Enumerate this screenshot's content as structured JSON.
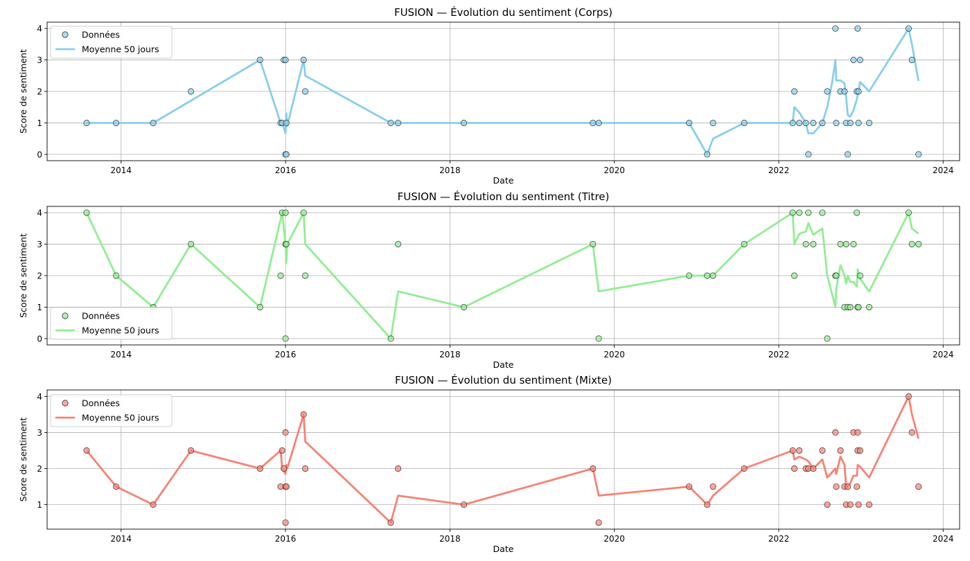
{
  "chart_data": [
    {
      "type": "scatter",
      "title": "FUSION — Évolution du sentiment (Corps)",
      "xlabel": "Date",
      "ylabel": "Score de sentiment",
      "xlim": [
        2013.1,
        2024.2
      ],
      "ylim": [
        -0.2,
        4.2
      ],
      "xticks": [
        2014,
        2016,
        2018,
        2020,
        2022,
        2024
      ],
      "yticks": [
        0,
        1,
        2,
        3,
        4
      ],
      "grid": true,
      "legend": [
        "Données",
        "Moyenne 50 jours"
      ],
      "legend_position": "upper-left",
      "color": "#87ceeb",
      "points": [
        [
          2013.58,
          1
        ],
        [
          2013.94,
          1
        ],
        [
          2014.39,
          1
        ],
        [
          2014.85,
          2
        ],
        [
          2015.69,
          3
        ],
        [
          2015.94,
          1
        ],
        [
          2015.96,
          1
        ],
        [
          2015.98,
          3
        ],
        [
          2016.0,
          3
        ],
        [
          2016.0,
          0
        ],
        [
          2016.01,
          0
        ],
        [
          2016.01,
          1
        ],
        [
          2016.22,
          3
        ],
        [
          2016.24,
          2
        ],
        [
          2017.28,
          1
        ],
        [
          2017.37,
          1
        ],
        [
          2018.17,
          1
        ],
        [
          2019.74,
          1
        ],
        [
          2019.81,
          1
        ],
        [
          2020.91,
          1
        ],
        [
          2021.13,
          0
        ],
        [
          2021.2,
          1
        ],
        [
          2021.58,
          1
        ],
        [
          2022.17,
          1
        ],
        [
          2022.19,
          2
        ],
        [
          2022.25,
          1
        ],
        [
          2022.33,
          1
        ],
        [
          2022.36,
          0
        ],
        [
          2022.42,
          1
        ],
        [
          2022.53,
          1
        ],
        [
          2022.59,
          2
        ],
        [
          2022.69,
          4
        ],
        [
          2022.7,
          1
        ],
        [
          2022.75,
          2
        ],
        [
          2022.8,
          2
        ],
        [
          2022.82,
          1
        ],
        [
          2022.84,
          0
        ],
        [
          2022.87,
          1
        ],
        [
          2022.91,
          3
        ],
        [
          2022.95,
          2
        ],
        [
          2022.96,
          4
        ],
        [
          2022.97,
          2
        ],
        [
          2022.97,
          1
        ],
        [
          2022.99,
          3
        ],
        [
          2023.1,
          1
        ],
        [
          2023.58,
          4
        ],
        [
          2023.62,
          3
        ],
        [
          2023.7,
          0
        ]
      ],
      "moving_average": [
        [
          2013.58,
          1
        ],
        [
          2014.39,
          1
        ],
        [
          2015.69,
          3
        ],
        [
          2015.94,
          1
        ],
        [
          2015.96,
          1
        ],
        [
          2016.0,
          0.67
        ],
        [
          2016.01,
          1.3
        ],
        [
          2016.02,
          0.9
        ],
        [
          2016.22,
          3
        ],
        [
          2016.24,
          2.5
        ],
        [
          2017.28,
          1
        ],
        [
          2018.17,
          1
        ],
        [
          2019.81,
          1
        ],
        [
          2020.91,
          1
        ],
        [
          2021.13,
          0
        ],
        [
          2021.2,
          0.5
        ],
        [
          2021.58,
          1
        ],
        [
          2022.17,
          1
        ],
        [
          2022.19,
          1.5
        ],
        [
          2022.25,
          1.33
        ],
        [
          2022.33,
          1
        ],
        [
          2022.36,
          0.67
        ],
        [
          2022.42,
          0.67
        ],
        [
          2022.53,
          1
        ],
        [
          2022.59,
          1.5
        ],
        [
          2022.65,
          2.3
        ],
        [
          2022.69,
          3
        ],
        [
          2022.7,
          2.35
        ],
        [
          2022.75,
          2.35
        ],
        [
          2022.8,
          2.25
        ],
        [
          2022.82,
          1.8
        ],
        [
          2022.84,
          1.25
        ],
        [
          2022.87,
          1.2
        ],
        [
          2022.91,
          1.4
        ],
        [
          2022.95,
          1.75
        ],
        [
          2022.97,
          2.0
        ],
        [
          2022.99,
          2.3
        ],
        [
          2023.1,
          2.0
        ],
        [
          2023.58,
          4
        ],
        [
          2023.62,
          3.5
        ],
        [
          2023.7,
          2.33
        ]
      ]
    },
    {
      "type": "scatter",
      "title": "FUSION — Évolution du sentiment (Titre)",
      "xlabel": "Date",
      "ylabel": "Score de sentiment",
      "xlim": [
        2013.1,
        2024.2
      ],
      "ylim": [
        -0.2,
        4.2
      ],
      "xticks": [
        2014,
        2016,
        2018,
        2020,
        2022,
        2024
      ],
      "yticks": [
        0,
        1,
        2,
        3,
        4
      ],
      "grid": true,
      "legend": [
        "Données",
        "Moyenne 50 jours"
      ],
      "legend_position": "lower-left",
      "color": "#90ee90",
      "points": [
        [
          2013.58,
          4
        ],
        [
          2013.94,
          2
        ],
        [
          2014.39,
          1
        ],
        [
          2014.85,
          3
        ],
        [
          2015.69,
          1
        ],
        [
          2015.94,
          2
        ],
        [
          2015.96,
          4
        ],
        [
          2016.0,
          4
        ],
        [
          2016.0,
          3
        ],
        [
          2016.01,
          3
        ],
        [
          2016.0,
          0
        ],
        [
          2016.22,
          4
        ],
        [
          2016.24,
          2
        ],
        [
          2017.28,
          0
        ],
        [
          2017.37,
          3
        ],
        [
          2018.17,
          1
        ],
        [
          2019.74,
          3
        ],
        [
          2019.81,
          0
        ],
        [
          2020.91,
          2
        ],
        [
          2021.13,
          2
        ],
        [
          2021.2,
          2
        ],
        [
          2021.58,
          3
        ],
        [
          2022.17,
          4
        ],
        [
          2022.19,
          2
        ],
        [
          2022.25,
          4
        ],
        [
          2022.33,
          3
        ],
        [
          2022.36,
          4
        ],
        [
          2022.42,
          3
        ],
        [
          2022.53,
          4
        ],
        [
          2022.59,
          0
        ],
        [
          2022.69,
          2
        ],
        [
          2022.7,
          2
        ],
        [
          2022.75,
          3
        ],
        [
          2022.8,
          1
        ],
        [
          2022.82,
          3
        ],
        [
          2022.84,
          1
        ],
        [
          2022.87,
          1
        ],
        [
          2022.91,
          3
        ],
        [
          2022.95,
          4
        ],
        [
          2022.96,
          1
        ],
        [
          2022.97,
          1
        ],
        [
          2022.99,
          2
        ],
        [
          2023.1,
          1
        ],
        [
          2023.58,
          4
        ],
        [
          2023.62,
          3
        ],
        [
          2023.7,
          3
        ]
      ],
      "moving_average": [
        [
          2013.58,
          4
        ],
        [
          2013.94,
          2
        ],
        [
          2014.39,
          1
        ],
        [
          2014.85,
          3
        ],
        [
          2015.69,
          1
        ],
        [
          2015.96,
          4
        ],
        [
          2016.0,
          3
        ],
        [
          2016.01,
          2.4
        ],
        [
          2016.02,
          3
        ],
        [
          2016.22,
          4
        ],
        [
          2016.24,
          3
        ],
        [
          2017.28,
          0
        ],
        [
          2017.37,
          1.5
        ],
        [
          2018.17,
          1
        ],
        [
          2019.74,
          3
        ],
        [
          2019.81,
          1.5
        ],
        [
          2020.91,
          2
        ],
        [
          2021.2,
          2
        ],
        [
          2021.58,
          3
        ],
        [
          2022.17,
          4
        ],
        [
          2022.19,
          3
        ],
        [
          2022.25,
          3.33
        ],
        [
          2022.33,
          3.4
        ],
        [
          2022.36,
          3.67
        ],
        [
          2022.42,
          3.3
        ],
        [
          2022.53,
          3.5
        ],
        [
          2022.59,
          2.0
        ],
        [
          2022.69,
          1.0
        ],
        [
          2022.7,
          1.6
        ],
        [
          2022.75,
          2.33
        ],
        [
          2022.8,
          2.0
        ],
        [
          2022.82,
          1.75
        ],
        [
          2022.84,
          2.0
        ],
        [
          2022.87,
          1.8
        ],
        [
          2022.91,
          1.8
        ],
        [
          2022.95,
          1.65
        ],
        [
          2022.96,
          2.2
        ],
        [
          2022.99,
          1.9
        ],
        [
          2023.1,
          1.5
        ],
        [
          2023.58,
          4
        ],
        [
          2023.62,
          3.5
        ],
        [
          2023.7,
          3.33
        ]
      ]
    },
    {
      "type": "scatter",
      "title": "FUSION — Évolution du sentiment (Mixte)",
      "xlabel": "Date",
      "ylabel": "Score de sentiment",
      "xlim": [
        2013.1,
        2024.2
      ],
      "ylim": [
        0.32,
        4.18
      ],
      "xticks": [
        2014,
        2016,
        2018,
        2020,
        2022,
        2024
      ],
      "yticks": [
        1,
        2,
        3,
        4
      ],
      "grid": true,
      "legend": [
        "Données",
        "Moyenne 50 jours"
      ],
      "legend_position": "upper-left",
      "color": "#fa8072",
      "points": [
        [
          2013.58,
          2.5
        ],
        [
          2013.94,
          1.5
        ],
        [
          2014.39,
          1
        ],
        [
          2014.85,
          2.5
        ],
        [
          2015.69,
          2
        ],
        [
          2015.94,
          1.5
        ],
        [
          2015.96,
          2.5
        ],
        [
          2015.98,
          2
        ],
        [
          2016.0,
          3
        ],
        [
          2016.0,
          1.5
        ],
        [
          2016.01,
          1.5
        ],
        [
          2016.0,
          0.5
        ],
        [
          2016.22,
          3.5
        ],
        [
          2016.24,
          2
        ],
        [
          2017.28,
          0.5
        ],
        [
          2017.37,
          2
        ],
        [
          2018.17,
          1
        ],
        [
          2019.74,
          2
        ],
        [
          2019.81,
          0.5
        ],
        [
          2020.91,
          1.5
        ],
        [
          2021.13,
          1
        ],
        [
          2021.2,
          1.5
        ],
        [
          2021.58,
          2
        ],
        [
          2022.17,
          2.5
        ],
        [
          2022.19,
          2
        ],
        [
          2022.25,
          2.5
        ],
        [
          2022.33,
          2
        ],
        [
          2022.36,
          2
        ],
        [
          2022.42,
          2
        ],
        [
          2022.53,
          2.5
        ],
        [
          2022.59,
          1
        ],
        [
          2022.69,
          3
        ],
        [
          2022.7,
          1.5
        ],
        [
          2022.75,
          2.5
        ],
        [
          2022.8,
          1.5
        ],
        [
          2022.82,
          1
        ],
        [
          2022.84,
          1.5
        ],
        [
          2022.87,
          1
        ],
        [
          2022.91,
          3
        ],
        [
          2022.95,
          1.5
        ],
        [
          2022.96,
          3
        ],
        [
          2022.96,
          2.5
        ],
        [
          2022.97,
          1
        ],
        [
          2022.99,
          2.5
        ],
        [
          2023.1,
          1
        ],
        [
          2023.58,
          4
        ],
        [
          2023.62,
          3
        ],
        [
          2023.7,
          1.5
        ]
      ],
      "moving_average": [
        [
          2013.58,
          2.5
        ],
        [
          2013.94,
          1.5
        ],
        [
          2014.39,
          1
        ],
        [
          2014.85,
          2.5
        ],
        [
          2015.69,
          2
        ],
        [
          2015.94,
          2.5
        ],
        [
          2015.96,
          2
        ],
        [
          2016.0,
          1.85
        ],
        [
          2016.01,
          2.1
        ],
        [
          2016.02,
          2.0
        ],
        [
          2016.22,
          3.5
        ],
        [
          2016.24,
          2.75
        ],
        [
          2017.28,
          0.5
        ],
        [
          2017.37,
          1.25
        ],
        [
          2018.17,
          1
        ],
        [
          2019.74,
          2
        ],
        [
          2019.81,
          1.25
        ],
        [
          2020.91,
          1.5
        ],
        [
          2021.13,
          1
        ],
        [
          2021.2,
          1.25
        ],
        [
          2021.58,
          2
        ],
        [
          2022.17,
          2.5
        ],
        [
          2022.19,
          2.25
        ],
        [
          2022.25,
          2.33
        ],
        [
          2022.33,
          2.25
        ],
        [
          2022.36,
          2.2
        ],
        [
          2022.42,
          2.0
        ],
        [
          2022.53,
          2.25
        ],
        [
          2022.59,
          1.75
        ],
        [
          2022.69,
          2.0
        ],
        [
          2022.7,
          1.85
        ],
        [
          2022.75,
          2.33
        ],
        [
          2022.8,
          2.1
        ],
        [
          2022.82,
          1.5
        ],
        [
          2022.84,
          1.5
        ],
        [
          2022.87,
          1.6
        ],
        [
          2022.91,
          1.8
        ],
        [
          2022.95,
          1.8
        ],
        [
          2022.96,
          2.1
        ],
        [
          2022.99,
          2.05
        ],
        [
          2023.1,
          1.75
        ],
        [
          2023.58,
          4
        ],
        [
          2023.62,
          3.5
        ],
        [
          2023.7,
          2.83
        ]
      ]
    }
  ]
}
